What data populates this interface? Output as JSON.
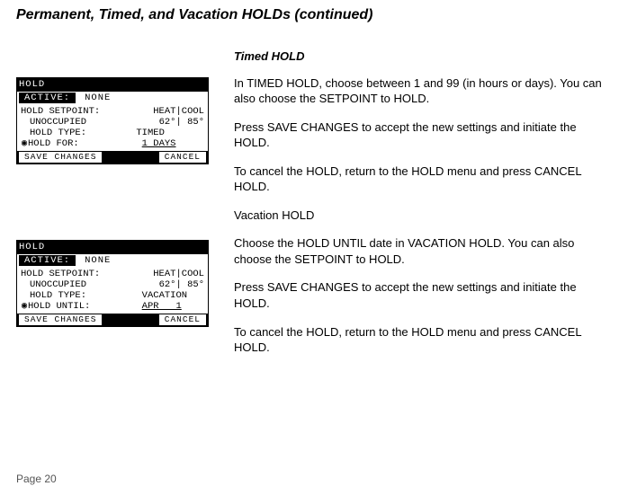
{
  "title": "Permanent, Timed, and Vacation HOLDs (continued)",
  "pageNumber": "Page 20",
  "lcdCommon": {
    "topBar": "HOLD",
    "activeLabel": "ACTIVE:",
    "activeValue": "NONE",
    "rowSetpointLabel": "HOLD SETPOINT:",
    "heatHeader": "HEAT",
    "coolHeader": "COOL",
    "rowUnoccLabel": "UNOCCUPIED",
    "heatVal": "62°",
    "coolVal": "85°",
    "rowTypeLabel": "HOLD TYPE:",
    "saveBtn": "SAVE CHANGES",
    "cancelBtn": "CANCEL"
  },
  "lcd1": {
    "typeValue": "TIMED",
    "row4Label": "HOLD FOR:",
    "row4Value": "1 DAYS"
  },
  "lcd2": {
    "typeValue": "VACATION",
    "row4Label": "HOLD UNTIL:",
    "row4Value": "APR   1"
  },
  "right": {
    "h1": "Timed HOLD",
    "p1": "In TIMED HOLD, choose between 1 and 99 (in hours or days). You can also choose the SETPOINT to HOLD.",
    "p2": "Press SAVE CHANGES to accept the new settings and initiate the HOLD.",
    "p3": "To cancel the HOLD, return to the HOLD menu and press CANCEL HOLD.",
    "h2": "Vacation HOLD",
    "p4": "Choose the HOLD UNTIL date in VACATION HOLD. You can also choose the SETPOINT to HOLD.",
    "p5": "Press SAVE CHANGES to accept the new settings and initiate the HOLD.",
    "p6": "To cancel the HOLD, return to the HOLD menu and press CANCEL HOLD."
  }
}
